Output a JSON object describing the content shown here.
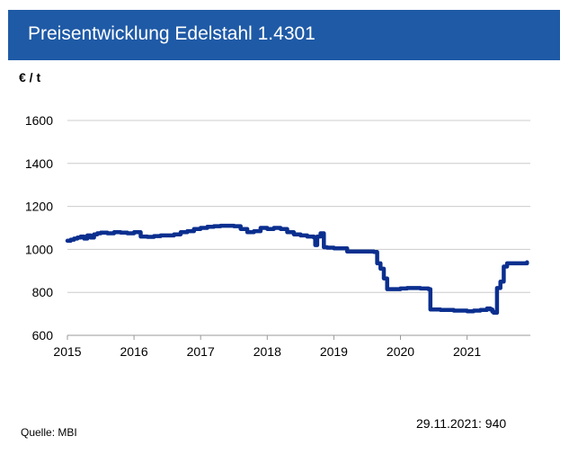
{
  "header": {
    "title": "Preisentwicklung Edelstahl 1.4301"
  },
  "footer": {
    "source": "Quelle: MBI",
    "latest": "29.11.2021: 940"
  },
  "colors": {
    "banner": "#1f5aa6",
    "series": "#0b2f8f",
    "grid": "#cccccc",
    "axis": "#999999"
  },
  "chart_data": {
    "type": "line",
    "title": "Preisentwicklung Edelstahl 1.4301",
    "ylabel": "€ / t",
    "xlabel": "",
    "ylim": [
      600,
      1600
    ],
    "xlim": [
      2015.0,
      2021.95
    ],
    "yticks": [
      600,
      800,
      1000,
      1200,
      1400,
      1600
    ],
    "xticks": [
      {
        "value": 2015,
        "label": "2015"
      },
      {
        "value": 2016,
        "label": "2016"
      },
      {
        "value": 2017,
        "label": "2017"
      },
      {
        "value": 2018,
        "label": "2018"
      },
      {
        "value": 2019,
        "label": "2019"
      },
      {
        "value": 2020,
        "label": "2020"
      },
      {
        "value": 2021,
        "label": "2021"
      }
    ],
    "grid": "horizontal",
    "series": [
      {
        "name": "",
        "step": true,
        "x": [
          2015.0,
          2015.05,
          2015.1,
          2015.15,
          2015.2,
          2015.25,
          2015.3,
          2015.35,
          2015.4,
          2015.45,
          2015.5,
          2015.6,
          2015.7,
          2015.8,
          2015.9,
          2016.0,
          2016.1,
          2016.2,
          2016.3,
          2016.4,
          2016.5,
          2016.6,
          2016.7,
          2016.8,
          2016.9,
          2017.0,
          2017.1,
          2017.2,
          2017.3,
          2017.4,
          2017.5,
          2017.6,
          2017.7,
          2017.8,
          2017.9,
          2018.0,
          2018.1,
          2018.2,
          2018.3,
          2018.4,
          2018.5,
          2018.6,
          2018.65,
          2018.7,
          2018.72,
          2018.75,
          2018.8,
          2018.85,
          2018.9,
          2019.0,
          2019.2,
          2019.4,
          2019.6,
          2019.65,
          2019.7,
          2019.75,
          2019.8,
          2020.0,
          2020.1,
          2020.2,
          2020.3,
          2020.42,
          2020.45,
          2020.6,
          2020.8,
          2021.0,
          2021.1,
          2021.2,
          2021.3,
          2021.35,
          2021.38,
          2021.4,
          2021.45,
          2021.5,
          2021.55,
          2021.6,
          2021.7,
          2021.8,
          2021.9
        ],
        "values": [
          1040,
          1045,
          1050,
          1055,
          1060,
          1050,
          1065,
          1055,
          1070,
          1075,
          1078,
          1075,
          1080,
          1078,
          1075,
          1080,
          1060,
          1058,
          1062,
          1065,
          1065,
          1070,
          1080,
          1085,
          1095,
          1100,
          1105,
          1108,
          1110,
          1110,
          1108,
          1095,
          1080,
          1085,
          1100,
          1095,
          1100,
          1095,
          1080,
          1070,
          1065,
          1060,
          1060,
          1055,
          1020,
          1060,
          1075,
          1010,
          1008,
          1005,
          990,
          990,
          988,
          935,
          910,
          865,
          815,
          818,
          820,
          820,
          818,
          815,
          720,
          718,
          715,
          712,
          715,
          718,
          725,
          720,
          710,
          705,
          820,
          850,
          920,
          935,
          935,
          935,
          940
        ]
      }
    ]
  }
}
